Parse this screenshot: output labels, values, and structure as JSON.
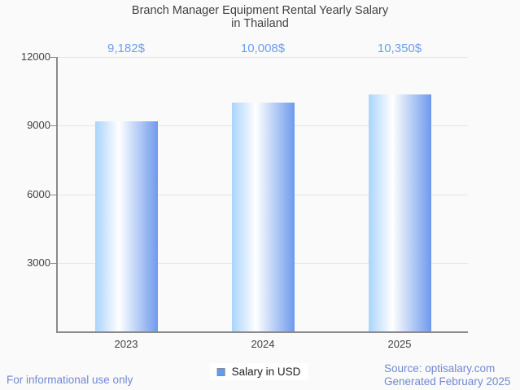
{
  "title": {
    "line1": "Branch Manager Equipment Rental Yearly Salary",
    "line2": "in Thailand"
  },
  "chart_data": {
    "type": "bar",
    "title": "Branch Manager Equipment Rental Yearly Salary in Thailand",
    "categories": [
      "2023",
      "2024",
      "2025"
    ],
    "series": [
      {
        "name": "Salary in USD",
        "values": [
          9182,
          10008,
          10350
        ]
      }
    ],
    "value_labels": [
      "9,182$",
      "10,008$",
      "10,350$"
    ],
    "xlabel": "",
    "ylabel": "",
    "ylim": [
      0,
      12000
    ],
    "yticks": [
      3000,
      6000,
      9000,
      12000
    ],
    "grid": true,
    "legend_position": "bottom",
    "bar_gradient": [
      "#aad4fb",
      "#ffffff",
      "#6e9aec"
    ],
    "bar_gradient_white_stop_pct": 38
  },
  "legend": {
    "label": "Salary in USD",
    "swatch_color": "#5f9df3"
  },
  "footer": {
    "disclaimer": "For informational use only",
    "source": "Source: optisalary.com",
    "generated": "Generated February 2025"
  },
  "colors": {
    "background": "#fafafa",
    "text": "#424242",
    "accent_blue": "#6d9eeb",
    "footer_blue": "#7189d3",
    "axis": "#8a8a8a",
    "gridline": "#e6e6e6"
  }
}
